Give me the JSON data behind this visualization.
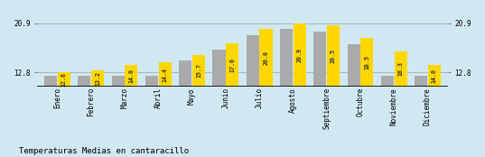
{
  "months": [
    "Enero",
    "Febrero",
    "Marzo",
    "Abril",
    "Mayo",
    "Junio",
    "Julio",
    "Agosto",
    "Septiembre",
    "Octubre",
    "Noviembre",
    "Diciembre"
  ],
  "values": [
    12.8,
    13.2,
    14.0,
    14.4,
    15.7,
    17.6,
    20.0,
    20.9,
    20.5,
    18.5,
    16.3,
    14.0
  ],
  "gray_values": [
    12.3,
    12.3,
    12.3,
    12.3,
    14.8,
    16.6,
    19.0,
    19.9,
    19.5,
    17.5,
    12.3,
    12.3
  ],
  "bar_color_yellow": "#FFD700",
  "bar_color_gray": "#AAAAAA",
  "background_color": "#D0E8F2",
  "grid_color": "#AAAAAA",
  "title": "Temperaturas Medias en cantaracillo",
  "ylim_min": 10.5,
  "ylim_max": 22.5,
  "yticks": [
    12.8,
    20.9
  ],
  "title_fontsize": 6.5,
  "value_label_fontsize": 4.8,
  "bar_width": 0.38,
  "tick_fontsize": 5.5,
  "axhline_color": "#888888"
}
